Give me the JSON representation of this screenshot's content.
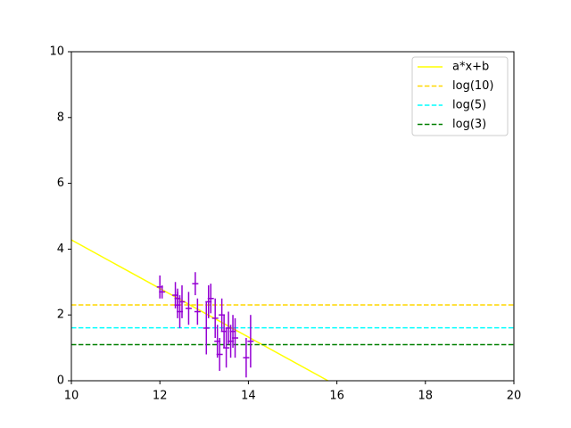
{
  "chart_data": {
    "type": "line",
    "xlim": [
      10,
      20
    ],
    "ylim": [
      0,
      10
    ],
    "xticks": [
      10,
      12,
      14,
      16,
      18,
      20
    ],
    "yticks": [
      0,
      2,
      4,
      6,
      8,
      10
    ],
    "legend": "upper right",
    "series": [
      {
        "name": "a*x+b",
        "color": "#ffff00",
        "style": "solid",
        "x": [
          10,
          15.8
        ],
        "values": [
          4.28,
          0
        ]
      },
      {
        "name": "log(10)",
        "color": "#ffd700",
        "style": "dashed",
        "x": [
          10,
          20
        ],
        "values": [
          2.303,
          2.303
        ]
      },
      {
        "name": "log(5)",
        "color": "#00ffff",
        "style": "dashed",
        "x": [
          10,
          20
        ],
        "values": [
          1.609,
          1.609
        ]
      },
      {
        "name": "log(3)",
        "color": "#008000",
        "style": "dashed",
        "x": [
          10,
          20
        ],
        "values": [
          1.099,
          1.099
        ]
      }
    ],
    "points": {
      "color": "#9400d3",
      "x": [
        12.0,
        12.05,
        12.35,
        12.4,
        12.45,
        12.5,
        12.65,
        12.8,
        12.85,
        13.05,
        13.1,
        13.15,
        13.3,
        13.35,
        13.4,
        13.45,
        13.5,
        13.55,
        13.6,
        13.65,
        13.7,
        13.95,
        14.05,
        13.25,
        12.4
      ],
      "values": [
        2.85,
        2.7,
        2.6,
        2.3,
        2.1,
        2.4,
        2.2,
        2.95,
        2.1,
        1.6,
        2.4,
        2.5,
        1.2,
        0.8,
        2.0,
        1.5,
        1.0,
        1.6,
        1.2,
        1.5,
        1.3,
        0.7,
        1.2,
        1.9,
        2.5
      ],
      "yerr": [
        0.35,
        0.2,
        0.4,
        0.4,
        0.5,
        0.5,
        0.5,
        0.35,
        0.4,
        0.8,
        0.5,
        0.45,
        0.5,
        0.5,
        0.5,
        0.5,
        0.6,
        0.5,
        0.5,
        0.5,
        0.6,
        0.6,
        0.8,
        0.6,
        0.3
      ],
      "xerr": [
        0.07,
        0.07,
        0.07,
        0.07,
        0.07,
        0.07,
        0.07,
        0.07,
        0.07,
        0.07,
        0.07,
        0.07,
        0.07,
        0.07,
        0.07,
        0.07,
        0.07,
        0.07,
        0.07,
        0.07,
        0.07,
        0.07,
        0.07,
        0.07,
        0.07
      ]
    }
  }
}
